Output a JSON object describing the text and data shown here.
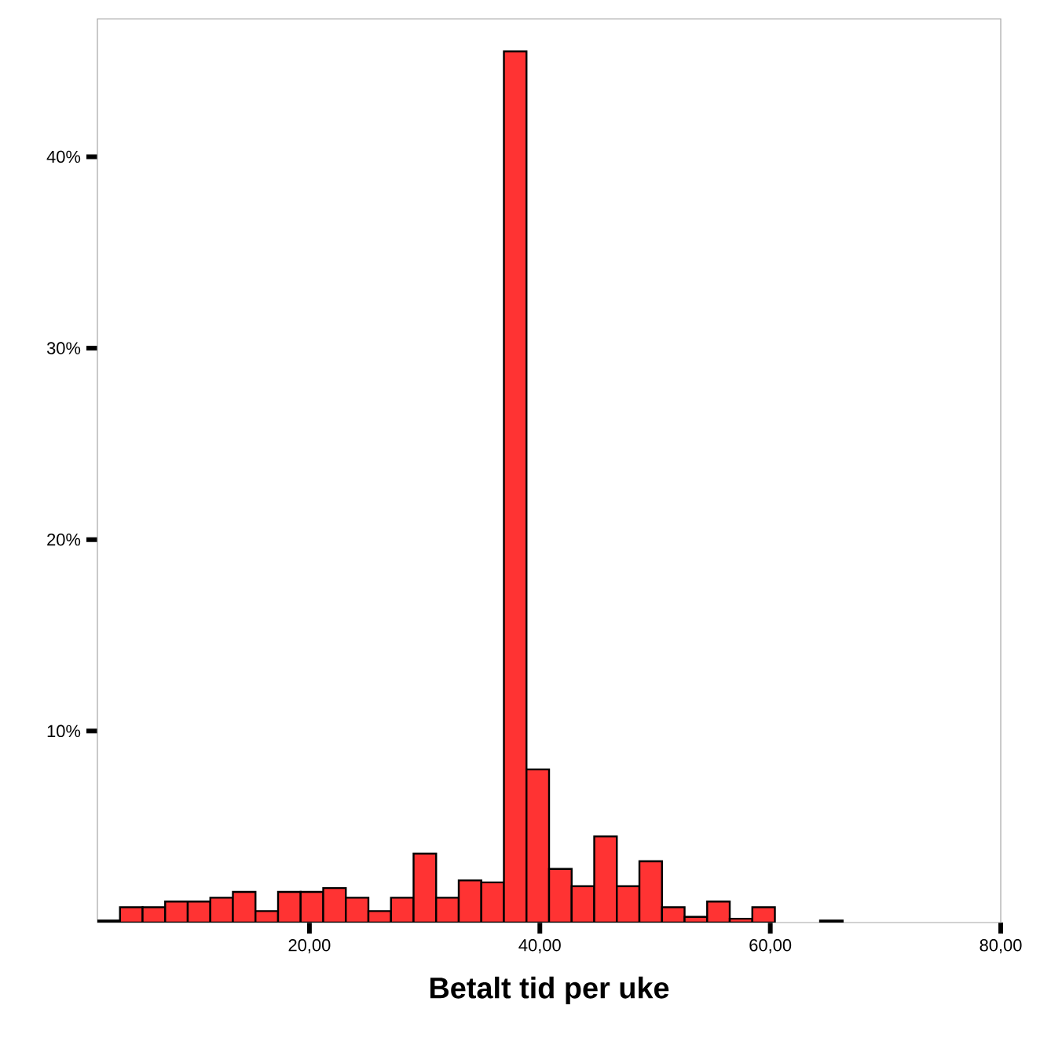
{
  "chart_data": {
    "type": "histogram",
    "xlabel": "Betalt tid per uke",
    "color": "#ff3333",
    "bins": [
      1.6,
      3.56,
      5.52,
      7.48,
      9.44,
      11.4,
      13.36,
      15.32,
      17.28,
      19.24,
      21.2,
      23.16,
      25.12,
      27.08,
      29.04,
      31.0,
      32.96,
      34.92,
      36.88,
      38.84,
      40.8,
      42.76,
      44.72,
      46.68,
      48.64,
      50.6,
      52.56,
      54.52,
      56.48,
      58.44,
      60.4,
      62.36,
      64.32,
      66.28,
      68.24,
      70.2,
      72.16,
      74.12,
      76.08,
      78.04,
      80.0
    ],
    "values": [
      0.1,
      0.8,
      0.8,
      1.1,
      1.1,
      1.3,
      1.6,
      0.6,
      1.6,
      1.6,
      1.8,
      1.3,
      0.6,
      1.3,
      3.6,
      1.3,
      2.2,
      2.1,
      45.5,
      8.0,
      2.8,
      1.9,
      4.5,
      1.9,
      3.2,
      0.8,
      0.3,
      1.1,
      0.2,
      0.8,
      null,
      null,
      0.1,
      null,
      null,
      null,
      null,
      null,
      null,
      null
    ],
    "xlim": [
      1.6,
      80
    ],
    "ylim": [
      0,
      47.2
    ],
    "xticks": [
      {
        "value": 20,
        "label": "20,00"
      },
      {
        "value": 40,
        "label": "40,00"
      },
      {
        "value": 60,
        "label": "60,00"
      },
      {
        "value": 80,
        "label": "80,00"
      }
    ],
    "yticks": [
      {
        "value": 10,
        "label": "10%"
      },
      {
        "value": 20,
        "label": "20%"
      },
      {
        "value": 30,
        "label": "30%"
      },
      {
        "value": 40,
        "label": "40%"
      }
    ],
    "grid": false
  }
}
